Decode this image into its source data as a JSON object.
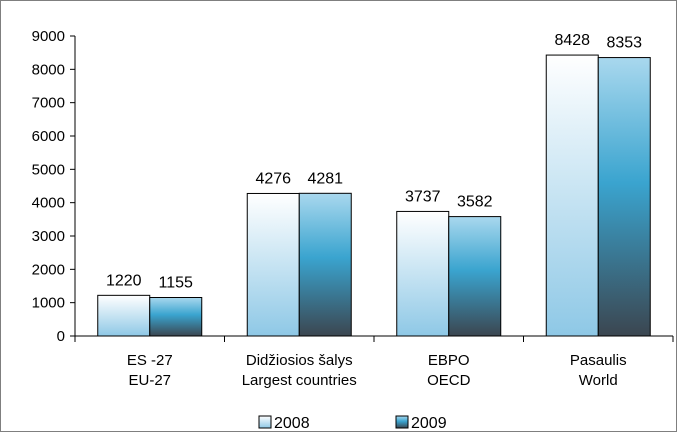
{
  "chart_data": {
    "type": "bar",
    "categories": [
      [
        "ES -27",
        "EU-27"
      ],
      [
        "Didžiosios šalys",
        "Largest countries"
      ],
      [
        "EBPO",
        "OECD"
      ],
      [
        "Pasaulis",
        "World"
      ]
    ],
    "series": [
      {
        "name": "2008",
        "values": [
          1220,
          4276,
          3737,
          8428
        ]
      },
      {
        "name": "2009",
        "values": [
          1155,
          4281,
          3582,
          8353
        ]
      }
    ],
    "ylim": [
      0,
      9000
    ],
    "yticks": [
      0,
      1000,
      2000,
      3000,
      4000,
      5000,
      6000,
      7000,
      8000,
      9000
    ],
    "grid": false,
    "legend_position": "bottom",
    "colors": {
      "2008_light": "#ffffff",
      "2008_dark": "#8ec8e6",
      "2009_light": "#a9d8ee",
      "2009_mid": "#3aa4cf",
      "2009_dark": "#3b4650",
      "outline": "#000000"
    }
  }
}
